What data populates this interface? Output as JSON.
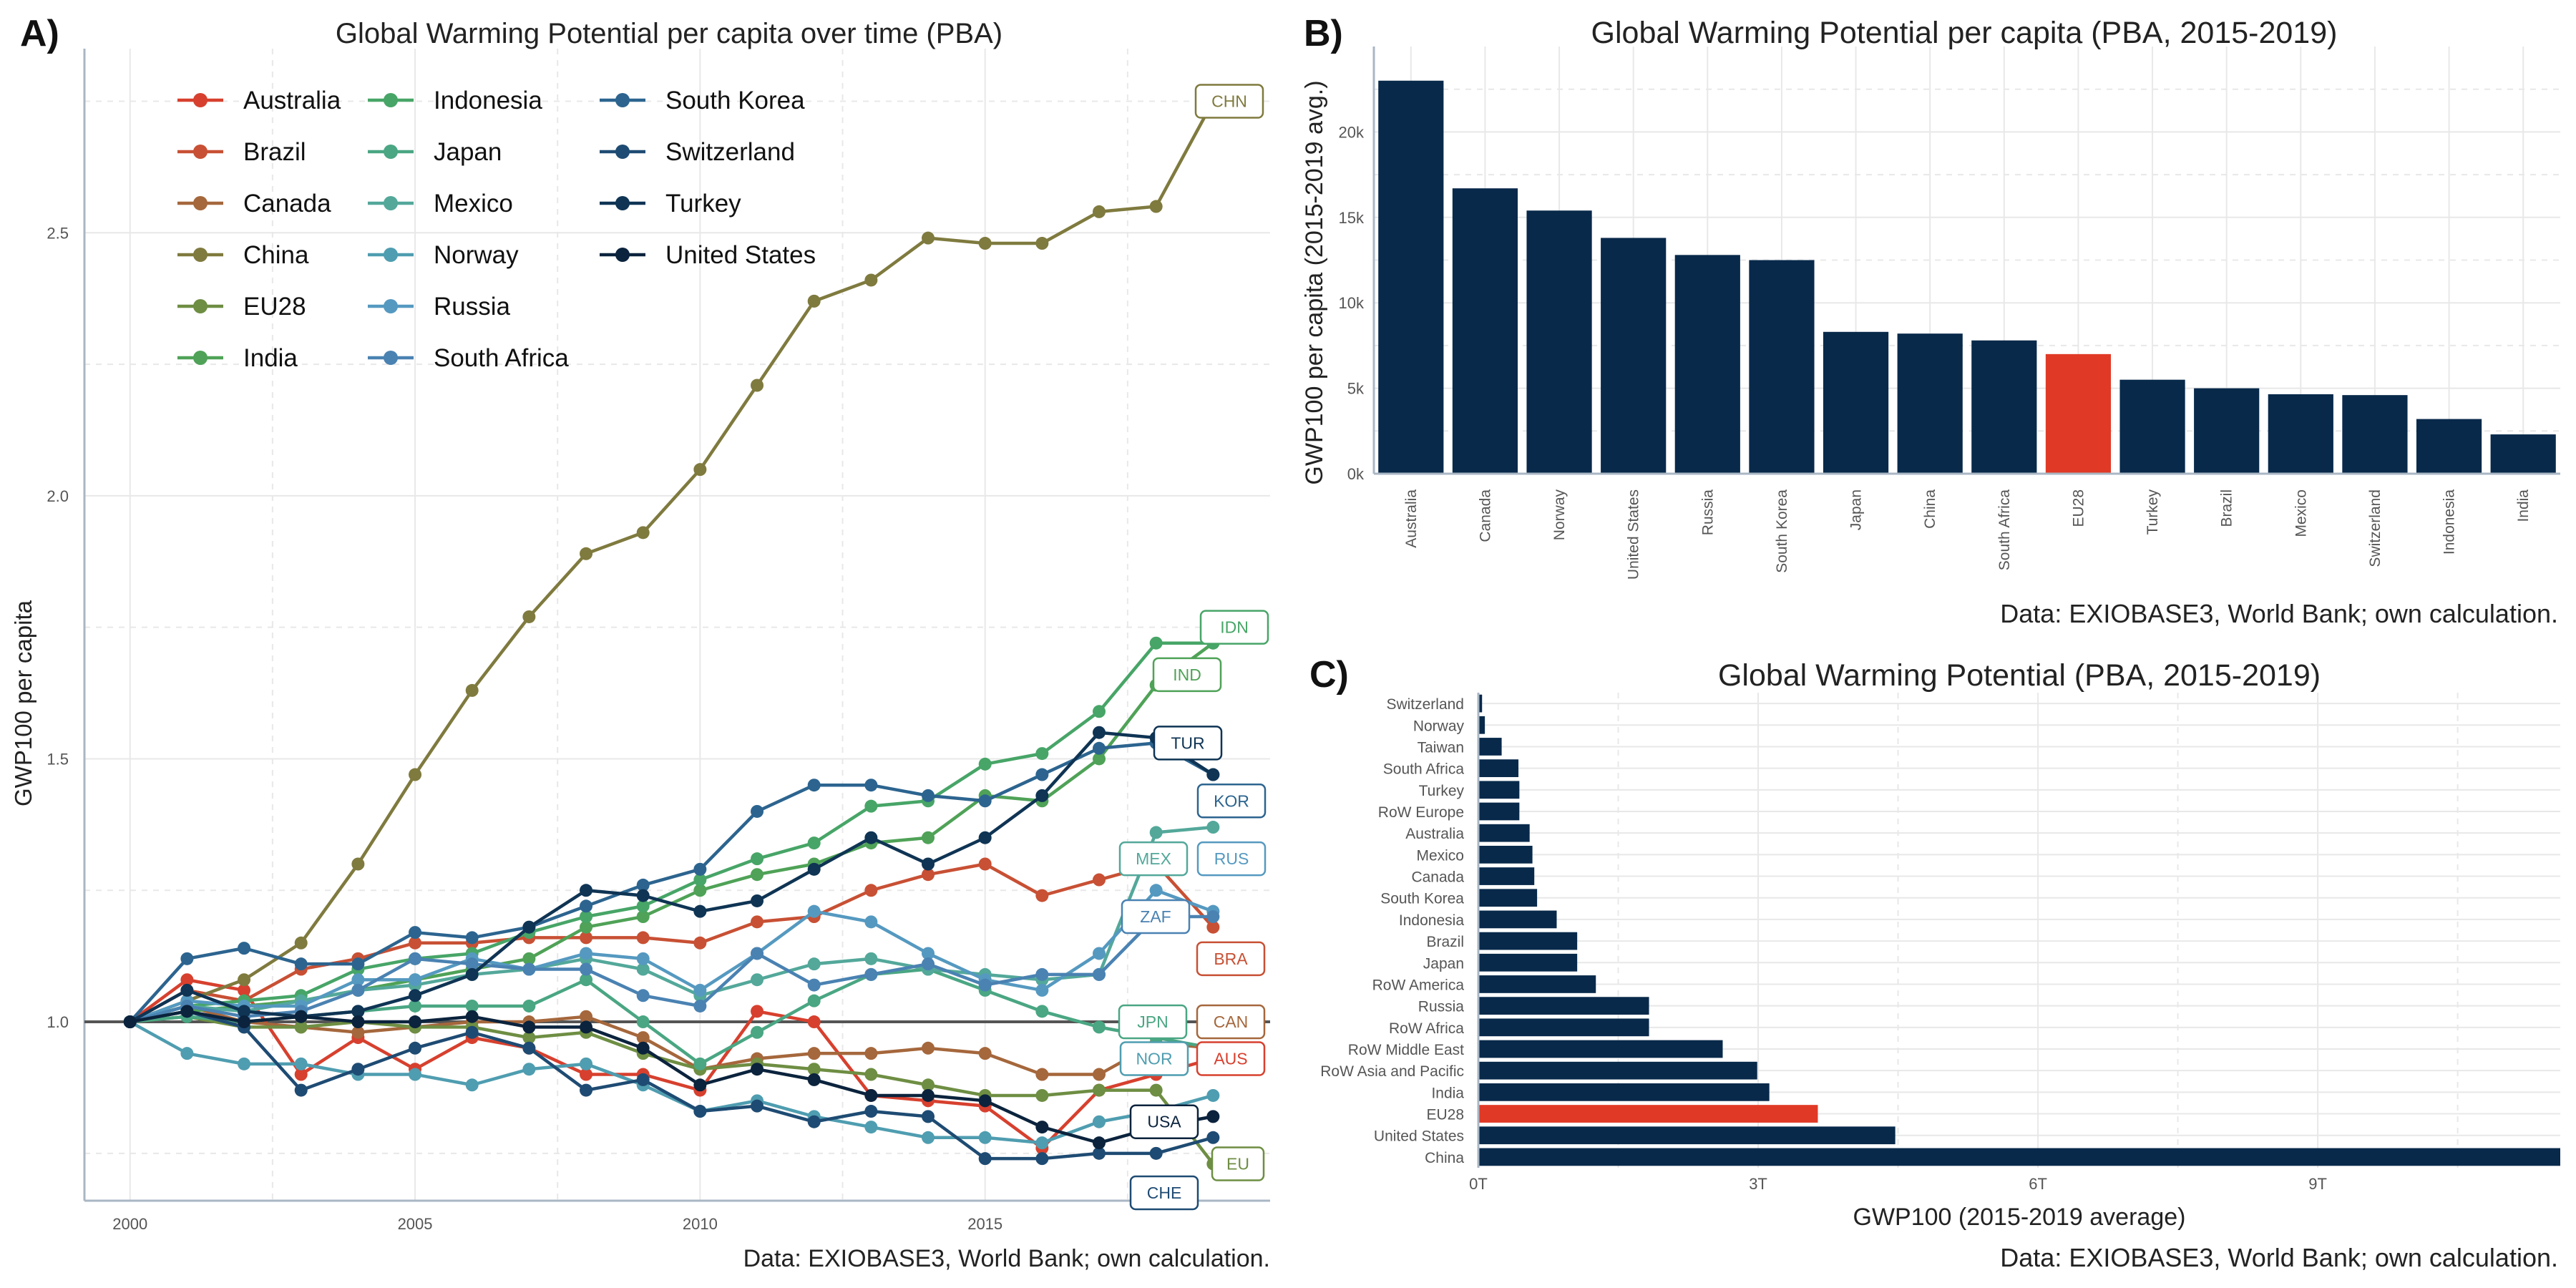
{
  "figure": {
    "colors": {
      "navy": "#08294a",
      "highlight": "#e03a26",
      "grid": "#e8e8e8",
      "axis": "#a9b6c4",
      "text": "#222222",
      "tick": "#555555"
    }
  },
  "chart_data": [
    {
      "panel_label": "A)",
      "type": "line",
      "title": "Global Warming Potential per capita over time (PBA)",
      "xlabel": "",
      "ylabel": "GWP100 per capita",
      "caption": "Data: EXIOBASE3, World Bank; own calculation.",
      "xlim": [
        1999.2,
        2020.0
      ],
      "ylim": [
        0.66,
        2.85
      ],
      "xticks": [
        2000,
        2005,
        2010,
        2015
      ],
      "xtick_labels": [
        "2000",
        "2005",
        "2010",
        "2015"
      ],
      "yticks": [
        1.0,
        1.5,
        2.0,
        2.5
      ],
      "ytick_labels": [
        "1.0",
        "1.5",
        "2.0",
        "2.5"
      ],
      "reference_line": 1.0,
      "legend_position": "top-left",
      "x": [
        2000,
        2001,
        2002,
        2003,
        2004,
        2005,
        2006,
        2007,
        2008,
        2009,
        2010,
        2011,
        2012,
        2013,
        2014,
        2015,
        2016,
        2017,
        2018,
        2019
      ],
      "series": [
        {
          "name": "Australia",
          "code": "AUS",
          "color": "#d7402e",
          "values": [
            1.0,
            1.08,
            1.06,
            0.9,
            0.97,
            0.91,
            0.97,
            0.95,
            0.9,
            0.9,
            0.87,
            1.02,
            1.0,
            0.86,
            0.85,
            0.84,
            0.76,
            0.87,
            0.9,
            0.93
          ]
        },
        {
          "name": "Brazil",
          "code": "BRA",
          "color": "#c85034",
          "values": [
            1.0,
            1.06,
            1.04,
            1.1,
            1.12,
            1.15,
            1.15,
            1.16,
            1.16,
            1.16,
            1.15,
            1.19,
            1.2,
            1.25,
            1.28,
            1.3,
            1.24,
            1.27,
            1.3,
            1.18
          ]
        },
        {
          "name": "Canada",
          "code": "CAN",
          "color": "#a5673c",
          "values": [
            1.0,
            1.03,
            1.0,
            0.99,
            0.98,
            0.99,
            1.0,
            1.0,
            1.01,
            0.97,
            0.91,
            0.93,
            0.94,
            0.94,
            0.95,
            0.94,
            0.9,
            0.9,
            0.96,
            0.95
          ]
        },
        {
          "name": "China",
          "code": "CHN",
          "color": "#7f7a3e",
          "values": [
            1.0,
            1.04,
            1.08,
            1.15,
            1.3,
            1.47,
            1.63,
            1.77,
            1.89,
            1.93,
            2.05,
            2.21,
            2.37,
            2.41,
            2.49,
            2.48,
            2.48,
            2.54,
            2.55,
            2.75
          ]
        },
        {
          "name": "EU28",
          "code": "EU",
          "color": "#6e8e43",
          "values": [
            1.0,
            1.01,
            0.99,
            0.99,
            1.0,
            0.99,
            0.99,
            0.97,
            0.98,
            0.94,
            0.91,
            0.92,
            0.91,
            0.9,
            0.88,
            0.86,
            0.86,
            0.87,
            0.87,
            0.73
          ]
        },
        {
          "name": "India",
          "code": "IND",
          "color": "#4fa257",
          "values": [
            1.0,
            1.02,
            1.03,
            1.04,
            1.06,
            1.08,
            1.1,
            1.12,
            1.18,
            1.2,
            1.25,
            1.28,
            1.3,
            1.34,
            1.35,
            1.43,
            1.42,
            1.5,
            1.64,
            1.72
          ]
        },
        {
          "name": "Indonesia",
          "code": "IDN",
          "color": "#47a567",
          "values": [
            1.0,
            1.03,
            1.04,
            1.05,
            1.1,
            1.12,
            1.13,
            1.17,
            1.2,
            1.22,
            1.27,
            1.31,
            1.34,
            1.41,
            1.42,
            1.49,
            1.51,
            1.59,
            1.72,
            1.72
          ]
        },
        {
          "name": "Japan",
          "code": "JPN",
          "color": "#4aa683",
          "values": [
            1.0,
            1.01,
            1.0,
            1.01,
            1.02,
            1.03,
            1.03,
            1.03,
            1.08,
            1.0,
            0.92,
            0.98,
            1.04,
            1.09,
            1.1,
            1.06,
            1.02,
            0.99,
            0.97,
            0.95
          ]
        },
        {
          "name": "Mexico",
          "code": "MEX",
          "color": "#53a89a",
          "values": [
            1.0,
            1.03,
            1.02,
            1.04,
            1.06,
            1.07,
            1.09,
            1.1,
            1.12,
            1.1,
            1.05,
            1.08,
            1.11,
            1.12,
            1.1,
            1.09,
            1.08,
            1.09,
            1.36,
            1.37
          ]
        },
        {
          "name": "Norway",
          "code": "NOR",
          "color": "#4f9db0",
          "values": [
            1.0,
            0.94,
            0.92,
            0.92,
            0.9,
            0.9,
            0.88,
            0.91,
            0.92,
            0.88,
            0.83,
            0.85,
            0.82,
            0.8,
            0.78,
            0.78,
            0.77,
            0.81,
            0.83,
            0.86
          ]
        },
        {
          "name": "Russia",
          "code": "RUS",
          "color": "#5599c0",
          "values": [
            1.0,
            1.04,
            1.03,
            1.03,
            1.08,
            1.08,
            1.12,
            1.1,
            1.13,
            1.12,
            1.06,
            1.13,
            1.21,
            1.19,
            1.13,
            1.08,
            1.06,
            1.13,
            1.25,
            1.21
          ]
        },
        {
          "name": "South Africa",
          "code": "ZAF",
          "color": "#4a82b2",
          "values": [
            1.0,
            1.03,
            1.01,
            1.02,
            1.06,
            1.12,
            1.11,
            1.1,
            1.1,
            1.05,
            1.03,
            1.13,
            1.07,
            1.09,
            1.11,
            1.07,
            1.09,
            1.09,
            1.2,
            1.2
          ]
        },
        {
          "name": "South Korea",
          "code": "KOR",
          "color": "#2c648f",
          "values": [
            1.0,
            1.12,
            1.14,
            1.11,
            1.11,
            1.17,
            1.16,
            1.18,
            1.22,
            1.26,
            1.29,
            1.4,
            1.45,
            1.45,
            1.43,
            1.42,
            1.47,
            1.52,
            1.53,
            1.47
          ]
        },
        {
          "name": "Switzerland",
          "code": "CHE",
          "color": "#1e4b73",
          "values": [
            1.0,
            1.02,
            0.99,
            0.87,
            0.91,
            0.95,
            0.98,
            0.95,
            0.87,
            0.89,
            0.83,
            0.84,
            0.81,
            0.83,
            0.82,
            0.74,
            0.74,
            0.75,
            0.75,
            0.78
          ]
        },
        {
          "name": "Turkey",
          "code": "TUR",
          "color": "#0f3454",
          "values": [
            1.0,
            1.06,
            1.02,
            1.01,
            1.02,
            1.05,
            1.09,
            1.18,
            1.25,
            1.24,
            1.21,
            1.23,
            1.29,
            1.35,
            1.3,
            1.35,
            1.43,
            1.55,
            1.54,
            1.47
          ]
        },
        {
          "name": "United States",
          "code": "USA",
          "color": "#0b233d",
          "values": [
            1.0,
            1.02,
            1.0,
            1.01,
            1.0,
            1.0,
            1.01,
            0.99,
            0.99,
            0.95,
            0.88,
            0.91,
            0.89,
            0.86,
            0.86,
            0.85,
            0.8,
            0.77,
            0.8,
            0.82
          ]
        }
      ],
      "end_labels": [
        {
          "code": "CHN",
          "y": 2.75
        },
        {
          "code": "IDN",
          "y": 1.75
        },
        {
          "code": "IND",
          "y": 1.66
        },
        {
          "code": "TUR",
          "y": 1.53
        },
        {
          "code": "KOR",
          "y": 1.42
        },
        {
          "code": "MEX",
          "y": 1.31
        },
        {
          "code": "RUS",
          "y": 1.31
        },
        {
          "code": "ZAF",
          "y": 1.2
        },
        {
          "code": "BRA",
          "y": 1.12
        },
        {
          "code": "JPN",
          "y": 1.0
        },
        {
          "code": "CAN",
          "y": 1.0
        },
        {
          "code": "NOR",
          "y": 0.93
        },
        {
          "code": "AUS",
          "y": 0.93
        },
        {
          "code": "USA",
          "y": 0.81
        },
        {
          "code": "CHE",
          "y": 0.72
        },
        {
          "code": "EU",
          "y": 0.73
        }
      ]
    },
    {
      "panel_label": "B)",
      "type": "bar",
      "title": "Global Warming Potential per capita (PBA, 2015-2019)",
      "xlabel": "",
      "ylabel": "GWP100 per capita (2015-2019 avg.)",
      "caption": "Data: EXIOBASE3, World Bank; own calculation.",
      "ylim": [
        0,
        25000
      ],
      "yticks": [
        0,
        5000,
        10000,
        15000,
        20000
      ],
      "ytick_labels": [
        "0k",
        "5k",
        "10k",
        "15k",
        "20k"
      ],
      "categories": [
        "Australia",
        "Canada",
        "Norway",
        "United States",
        "Russia",
        "South Korea",
        "Japan",
        "China",
        "South Africa",
        "EU28",
        "Turkey",
        "Brazil",
        "Mexico",
        "Switzerland",
        "Indonesia",
        "India"
      ],
      "values": [
        23000,
        16700,
        15400,
        13800,
        12800,
        12500,
        8300,
        8200,
        7800,
        7000,
        5500,
        5000,
        4650,
        4600,
        3200,
        2300
      ],
      "highlight": "EU28"
    },
    {
      "panel_label": "C)",
      "type": "bar",
      "orientation": "horizontal",
      "title": "Global Warming Potential (PBA, 2015-2019)",
      "xlabel": "GWP100 (2015-2019 average)",
      "ylabel": "",
      "caption": "Data: EXIOBASE3, World Bank; own calculation.",
      "xlim": [
        0,
        11.6
      ],
      "xticks": [
        0,
        3,
        6,
        9
      ],
      "xtick_labels": [
        "0T",
        "3T",
        "6T",
        "9T"
      ],
      "categories": [
        "Switzerland",
        "Norway",
        "Taiwan",
        "South Africa",
        "Turkey",
        "RoW Europe",
        "Australia",
        "Mexico",
        "Canada",
        "South Korea",
        "Indonesia",
        "Brazil",
        "Japan",
        "RoW America",
        "Russia",
        "RoW Africa",
        "RoW Middle East",
        "RoW Asia and Pacific",
        "India",
        "EU28",
        "United States",
        "China"
      ],
      "values": [
        0.04,
        0.07,
        0.25,
        0.43,
        0.44,
        0.44,
        0.55,
        0.58,
        0.6,
        0.63,
        0.84,
        1.06,
        1.06,
        1.26,
        1.83,
        1.83,
        2.62,
        2.99,
        3.12,
        3.64,
        4.47,
        11.6
      ],
      "highlight": "EU28"
    }
  ]
}
